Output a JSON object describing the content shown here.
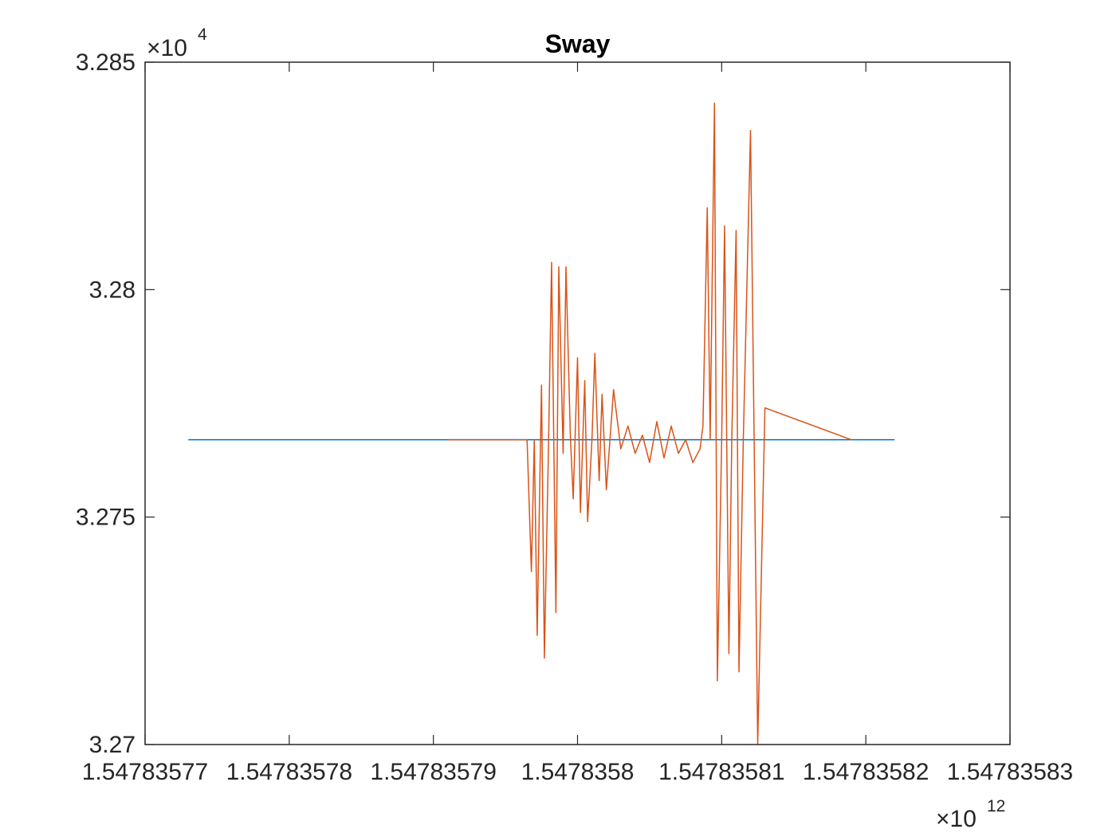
{
  "chart_data": {
    "type": "line",
    "title": "Sway",
    "xlabel": "",
    "ylabel": "",
    "x_multiplier": {
      "base": "×10",
      "exponent": "12"
    },
    "y_multiplier": {
      "base": "×10",
      "exponent": "4"
    },
    "xlim": [
      1.54783577,
      1.54783583
    ],
    "ylim": [
      3.27,
      3.285
    ],
    "x_ticks": [
      1.54783577,
      1.54783578,
      1.54783579,
      1.5478358,
      1.54783581,
      1.54783582,
      1.54783583
    ],
    "x_tick_labels": [
      "1.54783577",
      "1.54783578",
      "1.54783579",
      "1.5478358",
      "1.54783581",
      "1.54783582",
      "1.54783583"
    ],
    "y_ticks": [
      3.27,
      3.275,
      3.28,
      3.285
    ],
    "y_tick_labels": [
      "3.27",
      "3.275",
      "3.28",
      "3.285"
    ],
    "grid": false,
    "legend": "none",
    "colors": {
      "series1": "#0072BD",
      "series2": "#D95319",
      "axes": "#262626"
    },
    "series": [
      {
        "x": [
          1.547835773,
          1.547835822
        ],
        "y": [
          3.2767,
          3.2767
        ]
      },
      {
        "x": [
          1.547835791,
          1.5478357965,
          1.5478357968,
          1.547835797,
          1.5478357972,
          1.5478357975,
          1.5478357977,
          1.547835798,
          1.5478357982,
          1.5478357985,
          1.5478357987,
          1.547835799,
          1.5478357992,
          1.5478357995,
          1.5478357997,
          1.5478358,
          1.5478358002,
          1.5478358005,
          1.5478358007,
          1.547835801,
          1.5478358012,
          1.5478358015,
          1.5478358017,
          1.547835802,
          1.5478358025,
          1.547835803,
          1.5478358035,
          1.547835804,
          1.5478358045,
          1.547835805,
          1.5478358055,
          1.547835806,
          1.5478358065,
          1.547835807,
          1.5478358075,
          1.547835808,
          1.5478358085,
          1.5478358087,
          1.547835809,
          1.5478358092,
          1.5478358095,
          1.5478358097,
          1.54783581,
          1.5478358102,
          1.5478358105,
          1.5478358107,
          1.547835811,
          1.5478358112,
          1.5478358115,
          1.547835812,
          1.5478358125,
          1.547835813,
          1.547835819
        ],
        "y": [
          3.2767,
          3.2767,
          3.2738,
          3.2767,
          3.2724,
          3.2779,
          3.2719,
          3.2768,
          3.2806,
          3.2729,
          3.2805,
          3.2764,
          3.2805,
          3.2768,
          3.2754,
          3.2785,
          3.2751,
          3.278,
          3.2749,
          3.2767,
          3.2786,
          3.2758,
          3.2777,
          3.2756,
          3.2778,
          3.2765,
          3.277,
          3.2764,
          3.2768,
          3.2762,
          3.2771,
          3.2763,
          3.277,
          3.2764,
          3.2767,
          3.2762,
          3.2765,
          3.277,
          3.2818,
          3.2767,
          3.2841,
          3.2714,
          3.2767,
          3.2814,
          3.272,
          3.2767,
          3.2813,
          3.2716,
          3.2767,
          3.2835,
          3.2699,
          3.2774,
          3.2767
        ]
      }
    ]
  }
}
